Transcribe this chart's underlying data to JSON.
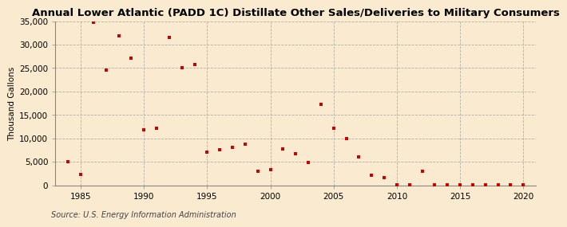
{
  "title": "Annual Lower Atlantic (PADD 1C) Distillate Other Sales/Deliveries to Military Consumers",
  "ylabel": "Thousand Gallons",
  "source": "Source: U.S. Energy Information Administration",
  "background_color": "#faebd0",
  "plot_bg_color": "#faebd0",
  "marker_color": "#cc0000",
  "years": [
    1984,
    1985,
    1986,
    1987,
    1988,
    1989,
    1990,
    1991,
    1992,
    1993,
    1994,
    1995,
    1996,
    1997,
    1998,
    1999,
    2000,
    2001,
    2002,
    2003,
    2004,
    2005,
    2006,
    2007,
    2008,
    2009,
    2010,
    2011,
    2012,
    2013,
    2014,
    2015,
    2016,
    2017,
    2018,
    2019,
    2020
  ],
  "values": [
    5000,
    2300,
    34700,
    24500,
    31900,
    27200,
    11900,
    12100,
    31600,
    25000,
    25800,
    7100,
    7600,
    8100,
    8800,
    3000,
    3400,
    7700,
    6700,
    4900,
    17300,
    12200,
    10000,
    6100,
    2200,
    1700,
    100,
    100,
    3000,
    100,
    100,
    100,
    100,
    100,
    100,
    100,
    100
  ],
  "xlim": [
    1983,
    2021
  ],
  "ylim": [
    0,
    35000
  ],
  "yticks": [
    0,
    5000,
    10000,
    15000,
    20000,
    25000,
    30000,
    35000
  ],
  "xticks": [
    1985,
    1990,
    1995,
    2000,
    2005,
    2010,
    2015,
    2020
  ],
  "title_fontsize": 9.5,
  "tick_fontsize": 7.5,
  "ylabel_fontsize": 7.5,
  "source_fontsize": 7
}
